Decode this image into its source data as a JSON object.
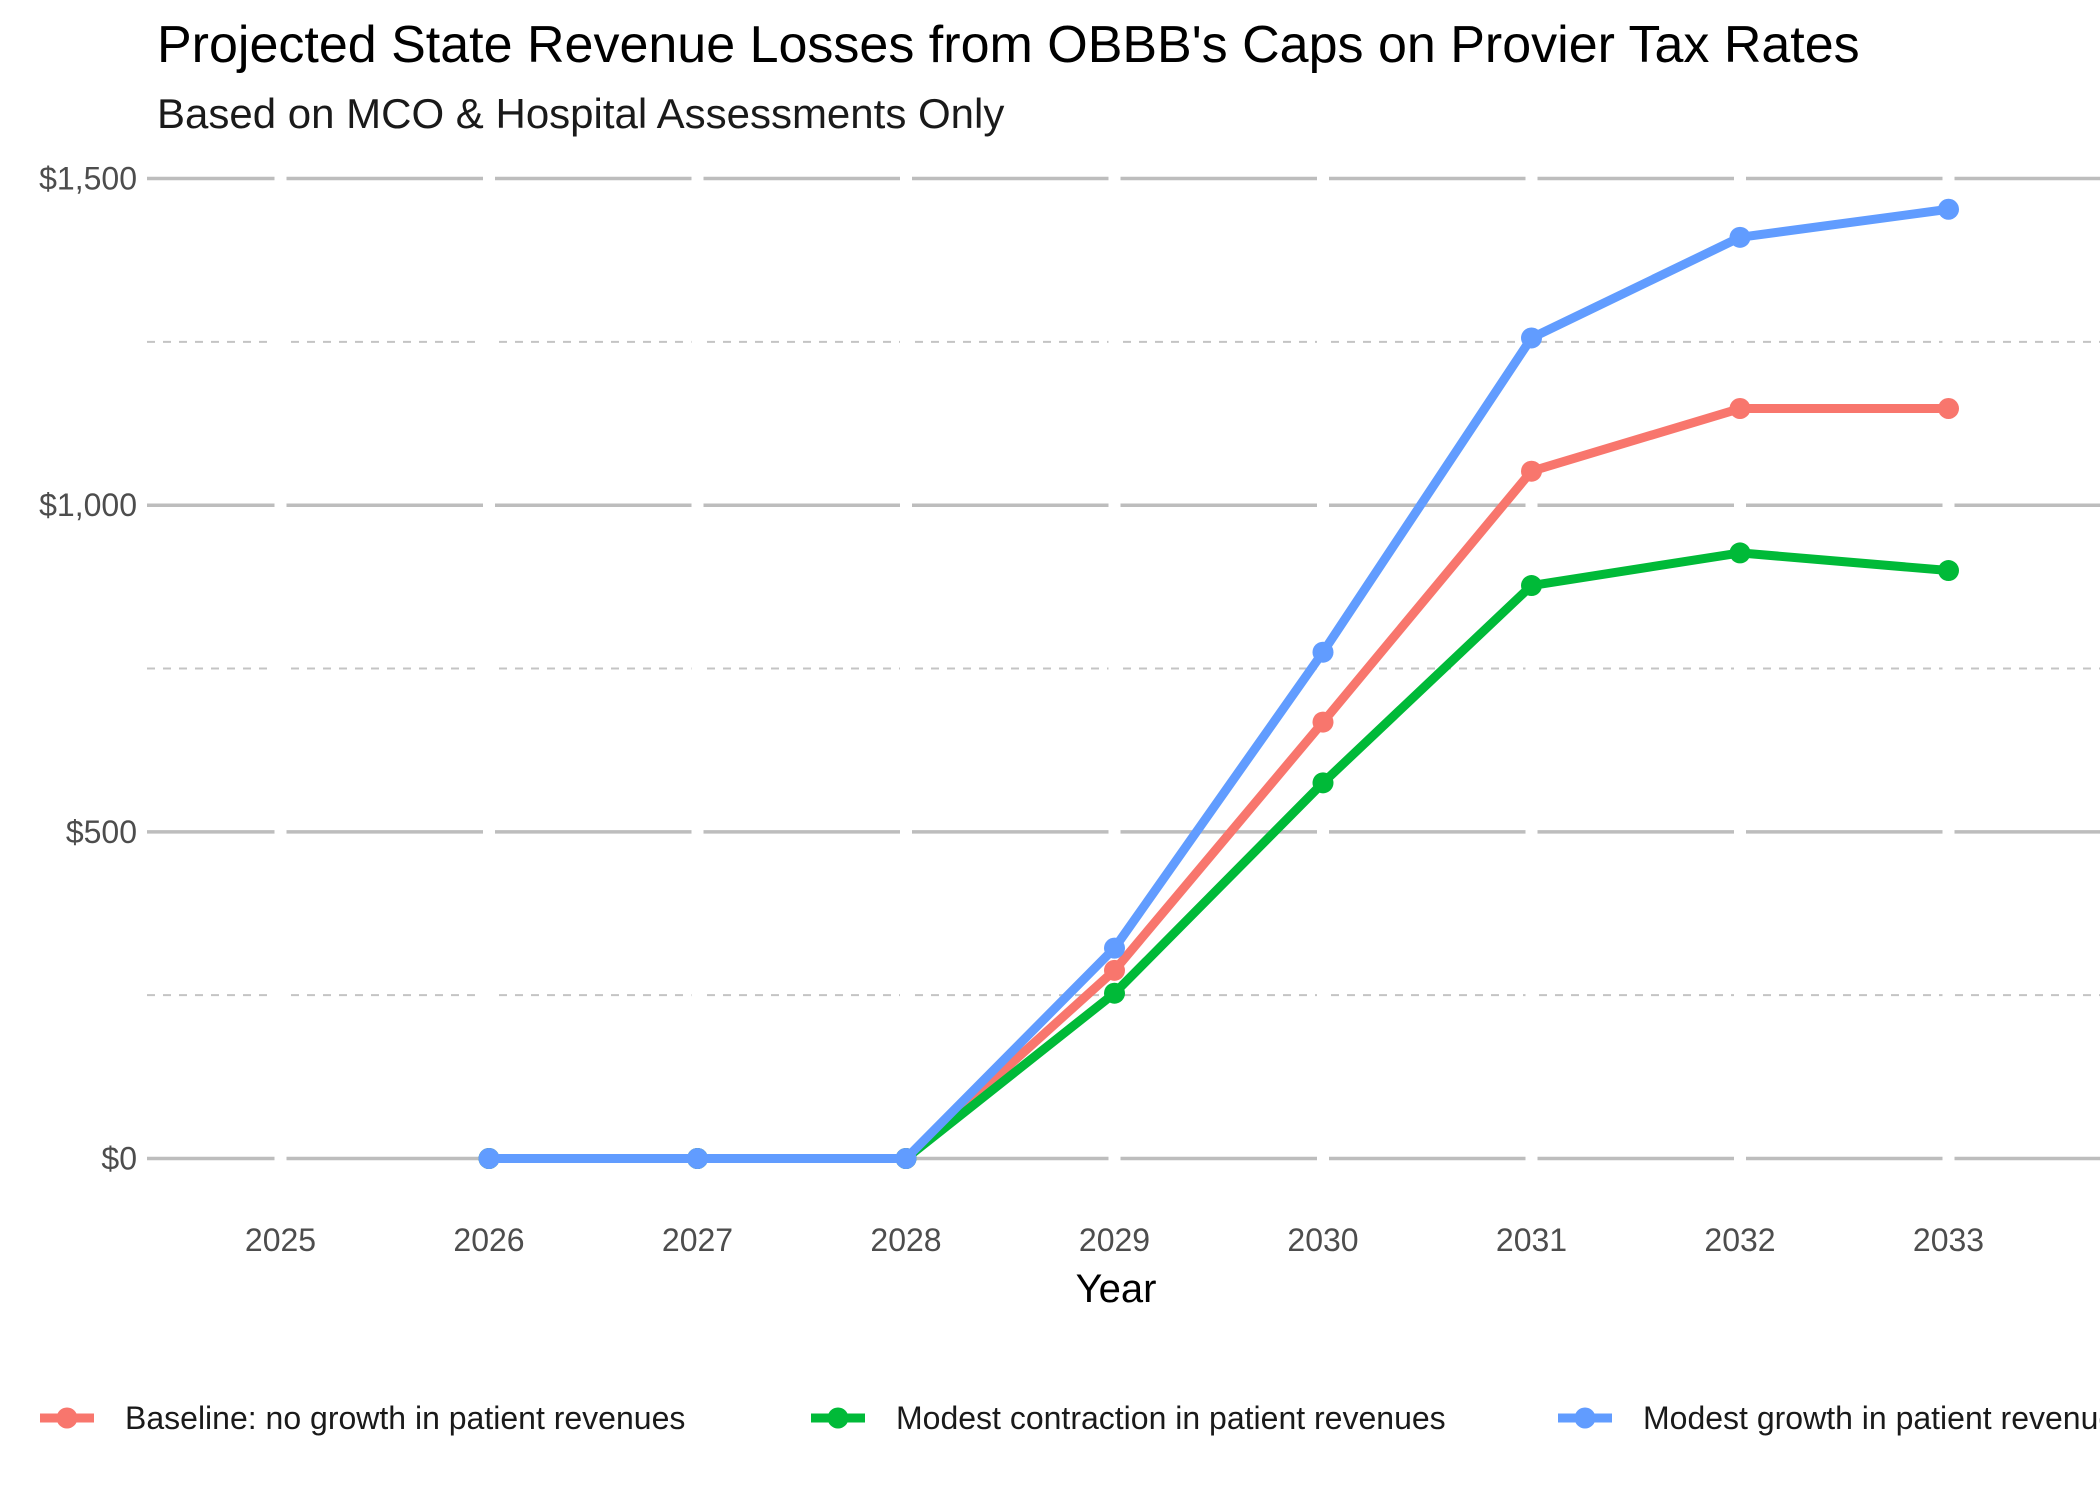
{
  "chart_data": {
    "type": "line",
    "title": "Projected State Revenue Losses from OBBB's Caps on Provier Tax Rates",
    "subtitle": "Based on MCO & Hospital Assessments Only",
    "xlabel": "Year",
    "ylabel": "",
    "x": [
      2025,
      2026,
      2027,
      2028,
      2029,
      2030,
      2031,
      2032,
      2033
    ],
    "ylim": [
      -60,
      1510
    ],
    "yticks": [
      0,
      500,
      1000,
      1500
    ],
    "ytick_labels": [
      "$0",
      "$500",
      "$1,000",
      "$1,500"
    ],
    "xticks": [
      2025,
      2026,
      2027,
      2028,
      2029,
      2030,
      2031,
      2032,
      2033
    ],
    "xtick_labels": [
      "2025",
      "2026",
      "2027",
      "2028",
      "2029",
      "2030",
      "2031",
      "2032",
      "2033"
    ],
    "grid": true,
    "legend_position": "bottom",
    "series": [
      {
        "name": "Baseline:  no growth in patient revenues",
        "color": "#F8766D",
        "x": [
          2026,
          2027,
          2028,
          2029,
          2030,
          2031,
          2032,
          2033
        ],
        "values": [
          0,
          0,
          0,
          288,
          668,
          1052,
          1148,
          1148
        ]
      },
      {
        "name": "Modest contraction in patient revenues",
        "color": "#00BA38",
        "x": [
          2026,
          2027,
          2028,
          2029,
          2030,
          2031,
          2032,
          2033
        ],
        "values": [
          0,
          0,
          0,
          253,
          575,
          877,
          927,
          900
        ]
      },
      {
        "name": "Modest growth in patient revenues",
        "color": "#619CFF",
        "x": [
          2026,
          2027,
          2028,
          2029,
          2030,
          2031,
          2032,
          2033
        ],
        "values": [
          0,
          0,
          0,
          322,
          775,
          1256,
          1410,
          1453
        ]
      }
    ]
  }
}
